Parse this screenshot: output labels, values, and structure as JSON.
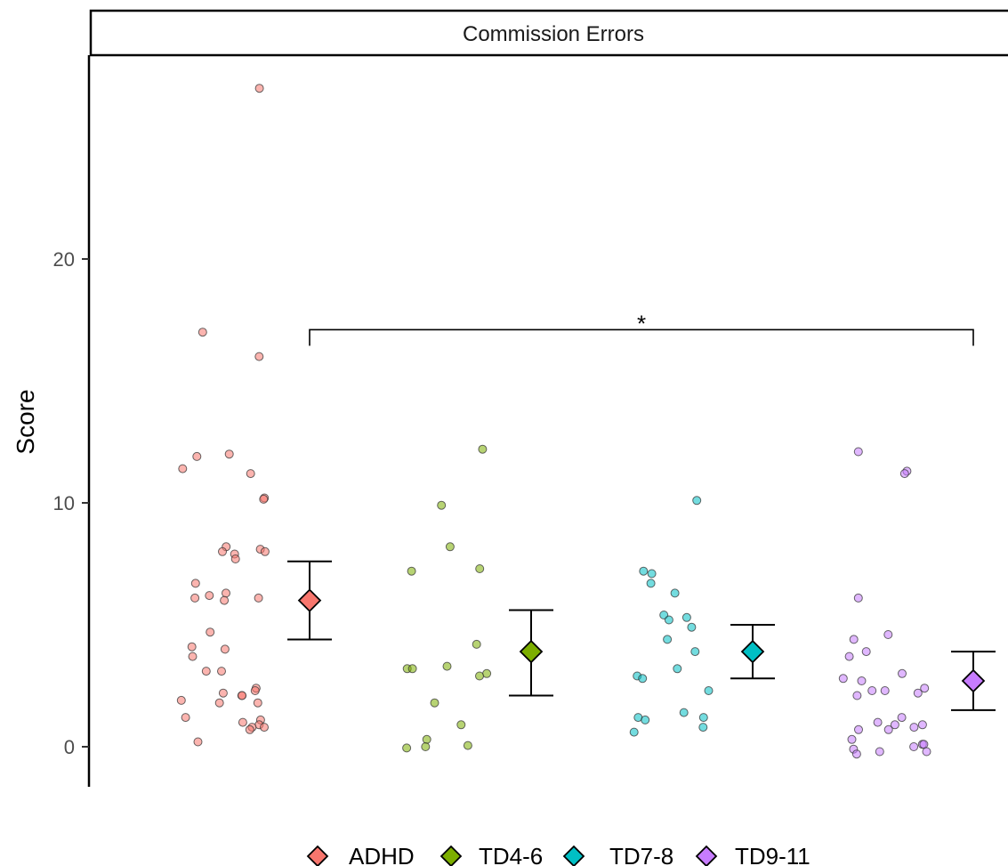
{
  "chart_data": {
    "type": "scatter",
    "title": "Commission Errors",
    "xlabel": "",
    "ylabel": "Score",
    "ylim": [
      -1.7,
      27.8
    ],
    "y_ticks": [
      0,
      10,
      20
    ],
    "grid": false,
    "legend_position": "bottom",
    "categories": [
      "ADHD",
      "TD4-6",
      "TD7-8",
      "TD9-11"
    ],
    "series": [
      {
        "name": "ADHD",
        "color": "#F8766D",
        "points": [
          27,
          17,
          16,
          12,
          11.9,
          11.4,
          11.2,
          10.2,
          10.15,
          8.2,
          8.1,
          8.0,
          8.0,
          7.9,
          7.7,
          6.7,
          6.3,
          6.2,
          6.1,
          6.1,
          6.0,
          4.7,
          4.1,
          4.0,
          3.7,
          3.1,
          3.1,
          2.4,
          2.3,
          2.2,
          2.1,
          2.1,
          1.9,
          1.8,
          1.8,
          1.2,
          1.1,
          1.0,
          0.9,
          0.8,
          0.8,
          0.7,
          0.2
        ],
        "mean": 6.0,
        "ci": [
          4.4,
          7.6
        ]
      },
      {
        "name": "TD4-6",
        "color": "#7CAE00",
        "points": [
          12.2,
          9.9,
          8.2,
          7.3,
          7.2,
          4.2,
          3.3,
          3.2,
          3.2,
          3.0,
          2.9,
          1.8,
          0.9,
          0.3,
          0.05,
          0.0,
          -0.05
        ],
        "mean": 3.9,
        "ci": [
          2.1,
          5.6
        ]
      },
      {
        "name": "TD7-8",
        "color": "#00BFC4",
        "points": [
          10.1,
          7.2,
          7.1,
          6.7,
          6.3,
          5.4,
          5.3,
          5.2,
          4.9,
          4.4,
          3.9,
          3.2,
          2.9,
          2.8,
          2.3,
          1.4,
          1.2,
          1.2,
          1.1,
          0.8,
          0.6
        ],
        "mean": 3.9,
        "ci": [
          2.8,
          5.0
        ]
      },
      {
        "name": "TD9-11",
        "color": "#C77CFF",
        "points": [
          12.1,
          11.3,
          11.2,
          6.1,
          4.6,
          4.4,
          3.9,
          3.7,
          3.0,
          2.8,
          2.7,
          2.4,
          2.3,
          2.3,
          2.2,
          2.1,
          1.2,
          1.0,
          0.9,
          0.9,
          0.8,
          0.7,
          0.7,
          0.3,
          0.1,
          0.1,
          0.0,
          -0.1,
          -0.2,
          -0.2,
          -0.3
        ],
        "mean": 2.7,
        "ci": [
          1.5,
          3.9
        ]
      }
    ],
    "annotations": [
      {
        "text": "*",
        "from": "ADHD",
        "to": "TD9-11",
        "y": 17.1
      }
    ]
  }
}
